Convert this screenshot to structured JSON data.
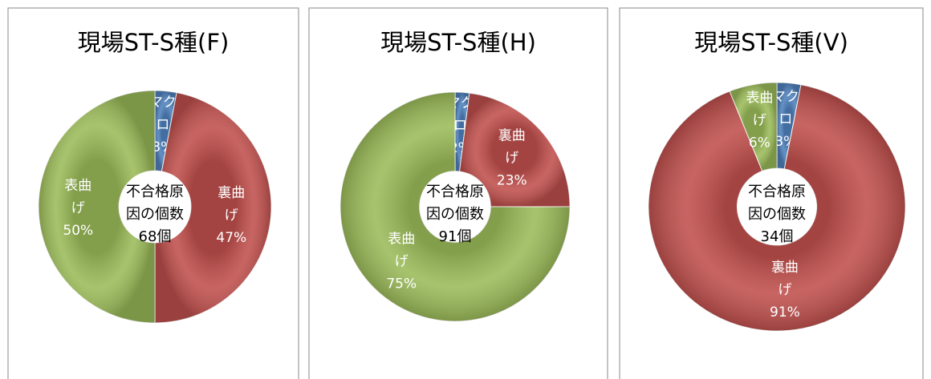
{
  "chart_data": [
    {
      "type": "donut",
      "title": "現場ST-S種(F)",
      "center_text": "不合格原因の個数68個",
      "categories": [
        "マクロ",
        "裏曲げ",
        "表曲げ"
      ],
      "values": [
        3,
        47,
        50
      ],
      "value_labels": [
        "3%",
        "47%",
        "50%"
      ],
      "colors": [
        "#4f81bd",
        "#c0504d",
        "#9bbb59"
      ]
    },
    {
      "type": "donut",
      "title": "現場ST-S種(H)",
      "center_text": "不合格原因の個数91個",
      "categories": [
        "マクロ",
        "裏曲げ",
        "表曲げ"
      ],
      "values": [
        2,
        23,
        75
      ],
      "value_labels": [
        "2%",
        "23%",
        "75%"
      ],
      "colors": [
        "#4f81bd",
        "#c0504d",
        "#9bbb59"
      ]
    },
    {
      "type": "donut",
      "title": "現場ST-S種(V)",
      "center_text": "不合格原因の個数34個",
      "categories": [
        "マクロ",
        "裏曲げ",
        "表曲げ"
      ],
      "values": [
        3,
        91,
        6
      ],
      "value_labels": [
        "3%",
        "91%",
        "6%"
      ],
      "colors": [
        "#4f81bd",
        "#c0504d",
        "#9bbb59"
      ]
    }
  ]
}
